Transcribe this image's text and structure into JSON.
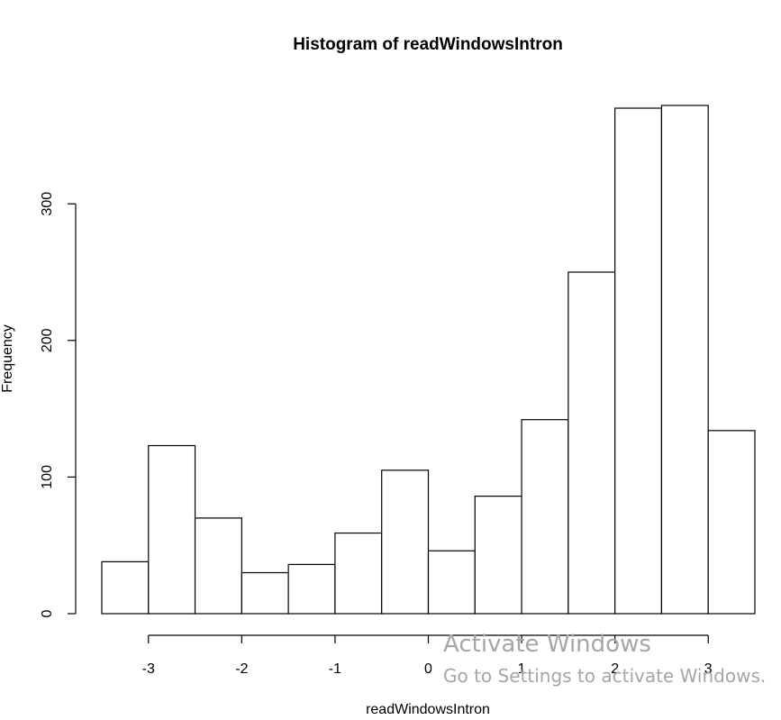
{
  "chart_data": {
    "type": "bar",
    "title": "Histogram of readWindowsIntron",
    "xlabel": "readWindowsIntron",
    "ylabel": "Frequency",
    "bin_edges": [
      -3.5,
      -3.0,
      -2.5,
      -2.0,
      -1.5,
      -1.0,
      -0.5,
      0.0,
      0.5,
      1.0,
      1.5,
      2.0,
      2.5,
      3.0,
      3.5
    ],
    "values": [
      38,
      123,
      70,
      30,
      36,
      59,
      105,
      46,
      86,
      142,
      250,
      370,
      372,
      134
    ],
    "x_ticks": [
      -3,
      -2,
      -1,
      0,
      1,
      2,
      3
    ],
    "x_tick_labels": [
      "-3",
      "-2",
      "-1",
      "0",
      "1",
      "2",
      "3"
    ],
    "y_ticks": [
      0,
      100,
      200,
      300
    ],
    "y_tick_labels": [
      "0",
      "100",
      "200",
      "300"
    ],
    "xlim": [
      -3.5,
      3.5
    ],
    "ylim": [
      0,
      372
    ],
    "grid": false,
    "fill_color": "#ffffff",
    "stroke_color": "#000000"
  },
  "watermark": {
    "title": "Activate Windows",
    "subtitle": "Go to Settings to activate Windows."
  }
}
